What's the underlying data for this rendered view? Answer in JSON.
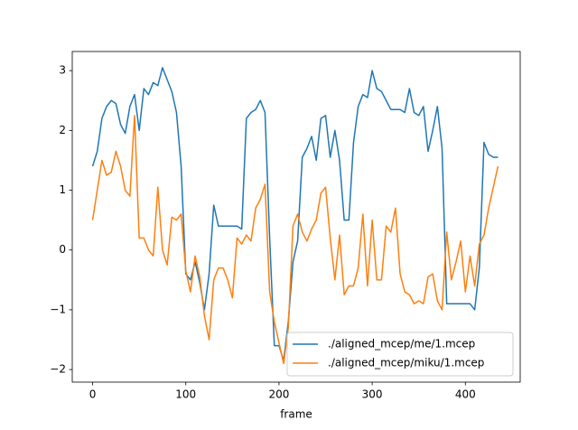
{
  "chart_data": {
    "type": "line",
    "xlabel": "frame",
    "x": [
      0,
      5,
      10,
      15,
      20,
      25,
      30,
      35,
      40,
      45,
      50,
      55,
      60,
      65,
      70,
      75,
      80,
      85,
      90,
      95,
      100,
      105,
      110,
      115,
      120,
      125,
      130,
      135,
      140,
      145,
      150,
      155,
      160,
      165,
      170,
      175,
      180,
      185,
      190,
      195,
      200,
      205,
      210,
      215,
      220,
      225,
      230,
      235,
      240,
      245,
      250,
      255,
      260,
      265,
      270,
      275,
      280,
      285,
      290,
      295,
      300,
      305,
      310,
      315,
      320,
      325,
      330,
      335,
      340,
      345,
      350,
      355,
      360,
      365,
      370,
      375,
      380,
      385,
      390,
      395,
      400,
      405,
      410,
      415,
      420,
      425,
      430,
      435
    ],
    "series": [
      {
        "name": "./aligned_mcep/me/1.mcep",
        "color": "#1f77b4",
        "values": [
          1.4,
          1.65,
          2.2,
          2.4,
          2.5,
          2.45,
          2.1,
          1.95,
          2.4,
          2.6,
          2.0,
          2.7,
          2.6,
          2.8,
          2.75,
          3.05,
          2.85,
          2.65,
          2.3,
          1.4,
          -0.4,
          -0.5,
          -0.2,
          -0.55,
          -1.0,
          -0.4,
          0.75,
          0.4,
          0.4,
          0.4,
          0.4,
          0.4,
          0.35,
          2.2,
          2.3,
          2.35,
          2.5,
          2.3,
          0.2,
          -1.6,
          -1.6,
          -1.85,
          -1.2,
          -0.2,
          0.15,
          1.55,
          1.7,
          1.9,
          1.5,
          2.2,
          2.25,
          1.55,
          2.0,
          1.5,
          0.5,
          0.5,
          1.8,
          2.4,
          2.6,
          2.55,
          3.0,
          2.7,
          2.65,
          2.5,
          2.35,
          2.35,
          2.35,
          2.3,
          2.7,
          2.3,
          2.25,
          2.4,
          1.65,
          2.0,
          2.4,
          1.7,
          -0.9,
          -0.9,
          -0.9,
          -0.9,
          -0.9,
          -0.9,
          -1.0,
          -0.3,
          1.8,
          1.6,
          1.55,
          1.55
        ]
      },
      {
        "name": "./aligned_mcep/miku/1.mcep",
        "color": "#ff7f0e",
        "values": [
          0.5,
          1.0,
          1.5,
          1.25,
          1.3,
          1.65,
          1.4,
          1.0,
          0.9,
          2.25,
          0.2,
          0.2,
          0.0,
          -0.1,
          1.05,
          0.0,
          -0.25,
          0.55,
          0.5,
          0.6,
          -0.35,
          -0.7,
          -0.1,
          -0.45,
          -1.1,
          -1.5,
          -0.5,
          -0.3,
          -0.3,
          -0.5,
          -0.8,
          0.2,
          0.1,
          0.25,
          0.15,
          0.7,
          0.85,
          1.1,
          -0.7,
          -1.2,
          -1.55,
          -1.9,
          -1.3,
          0.4,
          0.6,
          0.3,
          0.15,
          0.35,
          0.5,
          0.95,
          1.05,
          0.2,
          -0.5,
          0.25,
          -0.75,
          -0.6,
          -0.6,
          -0.3,
          0.6,
          -0.6,
          0.5,
          -0.5,
          -0.5,
          0.4,
          0.3,
          0.7,
          -0.4,
          -0.7,
          -0.75,
          -0.9,
          -0.85,
          -0.9,
          -0.45,
          -0.4,
          -0.85,
          -1.0,
          0.3,
          -0.5,
          -0.2,
          0.15,
          -0.7,
          -0.1,
          -0.6,
          0.1,
          0.25,
          0.7,
          1.05,
          1.4
        ]
      }
    ],
    "xlim": [
      -21.85,
      458.85
    ],
    "xticks": [
      0,
      100,
      200,
      300,
      400
    ],
    "ylim": [
      -2.21,
      3.32
    ],
    "yticks": [
      -2,
      -1,
      0,
      1,
      2,
      3
    ],
    "legend": "lower right"
  }
}
